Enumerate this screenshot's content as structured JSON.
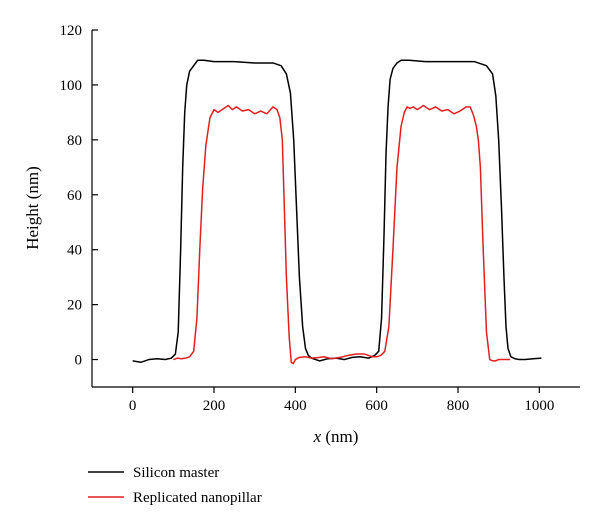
{
  "chart_data": {
    "type": "line",
    "xlabel_var": "x",
    "xlabel_unit": " (nm)",
    "ylabel": "Height (nm)",
    "xlim": [
      -100,
      1100
    ],
    "ylim": [
      -10,
      120
    ],
    "x_ticks": [
      0,
      200,
      400,
      600,
      800,
      1000
    ],
    "y_ticks": [
      0,
      20,
      40,
      60,
      80,
      100,
      120
    ],
    "legend_position": "below",
    "grid": false,
    "series": [
      {
        "name": "Silicon master",
        "color": "#000000",
        "x": [
          0,
          20,
          40,
          60,
          80,
          95,
          105,
          112,
          118,
          123,
          128,
          133,
          140,
          150,
          160,
          175,
          200,
          250,
          300,
          345,
          365,
          378,
          388,
          396,
          403,
          410,
          418,
          425,
          432,
          440,
          450,
          460,
          480,
          500,
          520,
          540,
          560,
          580,
          595,
          605,
          612,
          618,
          623,
          628,
          633,
          640,
          650,
          660,
          680,
          720,
          780,
          840,
          870,
          885,
          893,
          900,
          907,
          913,
          918,
          923,
          930,
          940,
          950,
          965,
          985,
          1005
        ],
        "y": [
          -0.5,
          -1,
          0,
          0.3,
          0,
          0.5,
          2,
          10,
          40,
          70,
          90,
          100,
          105,
          107,
          109,
          109,
          108.5,
          108.5,
          108,
          108,
          107,
          104,
          97,
          80,
          55,
          30,
          12,
          4,
          1.5,
          0.5,
          0,
          -0.5,
          0.3,
          0.5,
          0,
          0.8,
          1,
          0.5,
          1.5,
          3,
          15,
          45,
          75,
          92,
          102,
          106,
          108,
          109,
          109,
          108.5,
          108.5,
          108.5,
          107,
          104,
          96,
          80,
          55,
          30,
          12,
          4,
          1,
          0.3,
          0,
          0,
          0.3,
          0.5
        ]
      },
      {
        "name": "Replicated nanopillar",
        "color": "#e02020",
        "x": [
          100,
          110,
          120,
          130,
          140,
          150,
          158,
          165,
          172,
          180,
          190,
          200,
          210,
          220,
          235,
          245,
          255,
          270,
          285,
          300,
          315,
          330,
          345,
          355,
          362,
          368,
          372,
          378,
          385,
          390,
          395,
          400,
          410,
          425,
          440,
          455,
          470,
          490,
          510,
          530,
          550,
          570,
          590,
          600,
          610,
          620,
          630,
          640,
          650,
          660,
          668,
          675,
          682,
          690,
          700,
          715,
          730,
          745,
          760,
          775,
          790,
          805,
          820,
          830,
          838,
          845,
          850,
          855,
          862,
          870,
          878,
          886,
          892,
          900,
          915,
          928
        ],
        "y": [
          0,
          0.5,
          0.3,
          0.5,
          1,
          3,
          15,
          40,
          62,
          78,
          88,
          91,
          90,
          91,
          92.5,
          91,
          92,
          90.5,
          91,
          89.5,
          90.5,
          89.5,
          92,
          91,
          88,
          80,
          60,
          30,
          8,
          -1,
          -1.5,
          0,
          0.8,
          1,
          0.5,
          0.7,
          1,
          0.3,
          0.8,
          1.5,
          2,
          2,
          1,
          1,
          1.5,
          3,
          12,
          40,
          70,
          85,
          90,
          92,
          91.5,
          92,
          91,
          92.5,
          91,
          92,
          90.5,
          91,
          89.5,
          90.5,
          92,
          92,
          89,
          85,
          80,
          70,
          40,
          10,
          0,
          -0.5,
          -0.5,
          0,
          0,
          0
        ]
      }
    ]
  }
}
